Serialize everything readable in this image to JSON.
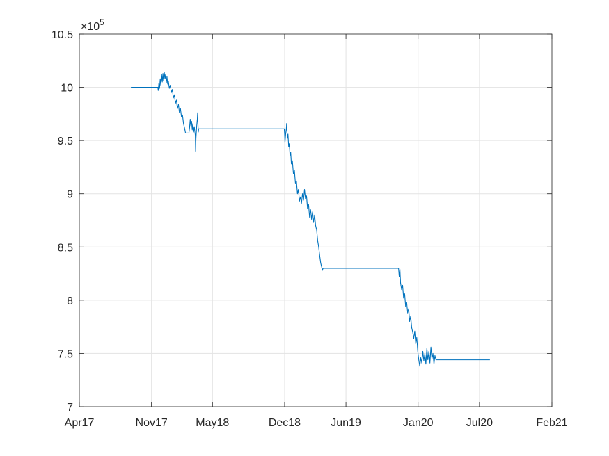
{
  "chart_data": {
    "type": "line",
    "title": "",
    "xlabel": "",
    "ylabel": "",
    "y_scale_exponent_label": "×10",
    "y_scale_exponent_power": "5",
    "x_axis": {
      "type": "date",
      "range": [
        "2017-04-01",
        "2021-02-01"
      ],
      "ticks": [
        {
          "date": "2017-04-01",
          "label": "Apr17"
        },
        {
          "date": "2017-11-01",
          "label": "Nov17"
        },
        {
          "date": "2018-05-01",
          "label": "May18"
        },
        {
          "date": "2018-12-01",
          "label": "Dec18"
        },
        {
          "date": "2019-06-01",
          "label": "Jun19"
        },
        {
          "date": "2020-01-01",
          "label": "Jan20"
        },
        {
          "date": "2020-07-01",
          "label": "Jul20"
        },
        {
          "date": "2021-02-01",
          "label": "Feb21"
        }
      ]
    },
    "y_axis": {
      "range": [
        7,
        10.5
      ],
      "ticks": [
        {
          "value": 7,
          "label": "7"
        },
        {
          "value": 7.5,
          "label": "7.5"
        },
        {
          "value": 8,
          "label": "8"
        },
        {
          "value": 8.5,
          "label": "8.5"
        },
        {
          "value": 9,
          "label": "9"
        },
        {
          "value": 9.5,
          "label": "9.5"
        },
        {
          "value": 10,
          "label": "10"
        },
        {
          "value": 10.5,
          "label": "10.5"
        }
      ]
    },
    "grid": true,
    "legend": "none",
    "series": [
      {
        "color": "#0072bd",
        "points": [
          [
            "2017-09-01",
            10.0
          ],
          [
            "2017-11-20",
            10.0
          ],
          [
            "2017-11-21",
            9.97
          ],
          [
            "2017-11-23",
            10.04
          ],
          [
            "2017-11-25",
            9.99
          ],
          [
            "2017-11-27",
            10.08
          ],
          [
            "2017-11-29",
            10.02
          ],
          [
            "2017-12-01",
            10.12
          ],
          [
            "2017-12-03",
            10.05
          ],
          [
            "2017-12-05",
            10.13
          ],
          [
            "2017-12-07",
            10.06
          ],
          [
            "2017-12-09",
            10.14
          ],
          [
            "2017-12-11",
            10.08
          ],
          [
            "2017-12-13",
            10.12
          ],
          [
            "2017-12-15",
            10.04
          ],
          [
            "2017-12-17",
            10.1
          ],
          [
            "2017-12-19",
            10.03
          ],
          [
            "2017-12-21",
            10.06
          ],
          [
            "2017-12-24",
            9.99
          ],
          [
            "2017-12-27",
            10.02
          ],
          [
            "2017-12-30",
            9.95
          ],
          [
            "2018-01-02",
            9.98
          ],
          [
            "2018-01-05",
            9.9
          ],
          [
            "2018-01-08",
            9.93
          ],
          [
            "2018-01-11",
            9.85
          ],
          [
            "2018-01-14",
            9.88
          ],
          [
            "2018-01-17",
            9.8
          ],
          [
            "2018-01-20",
            9.84
          ],
          [
            "2018-01-23",
            9.76
          ],
          [
            "2018-01-26",
            9.8
          ],
          [
            "2018-01-29",
            9.72
          ],
          [
            "2018-02-01",
            9.74
          ],
          [
            "2018-02-04",
            9.66
          ],
          [
            "2018-02-07",
            9.62
          ],
          [
            "2018-02-10",
            9.57
          ],
          [
            "2018-02-20",
            9.57
          ],
          [
            "2018-02-22",
            9.62
          ],
          [
            "2018-02-24",
            9.7
          ],
          [
            "2018-02-26",
            9.64
          ],
          [
            "2018-02-28",
            9.68
          ],
          [
            "2018-03-02",
            9.6
          ],
          [
            "2018-03-04",
            9.66
          ],
          [
            "2018-03-06",
            9.58
          ],
          [
            "2018-03-08",
            9.63
          ],
          [
            "2018-03-11",
            9.55
          ],
          [
            "2018-03-12",
            9.4
          ],
          [
            "2018-03-13",
            9.52
          ],
          [
            "2018-03-15",
            9.63
          ],
          [
            "2018-03-17",
            9.7
          ],
          [
            "2018-03-18",
            9.76
          ],
          [
            "2018-03-19",
            9.65
          ],
          [
            "2018-03-20",
            9.58
          ],
          [
            "2018-03-21",
            9.61
          ],
          [
            "2018-11-30",
            9.61
          ],
          [
            "2018-12-01",
            9.56
          ],
          [
            "2018-12-02",
            9.48
          ],
          [
            "2018-12-04",
            9.56
          ],
          [
            "2018-12-06",
            9.61
          ],
          [
            "2018-12-07",
            9.66
          ],
          [
            "2018-12-09",
            9.52
          ],
          [
            "2018-12-11",
            9.56
          ],
          [
            "2018-12-13",
            9.44
          ],
          [
            "2018-12-15",
            9.47
          ],
          [
            "2018-12-17",
            9.36
          ],
          [
            "2018-12-19",
            9.39
          ],
          [
            "2018-12-21",
            9.28
          ],
          [
            "2018-12-24",
            9.31
          ],
          [
            "2018-12-27",
            9.19
          ],
          [
            "2018-12-30",
            9.22
          ],
          [
            "2019-01-02",
            9.1
          ],
          [
            "2019-01-05",
            9.12
          ],
          [
            "2019-01-08",
            9.0
          ],
          [
            "2019-01-11",
            9.04
          ],
          [
            "2019-01-14",
            8.93
          ],
          [
            "2019-01-17",
            8.97
          ],
          [
            "2019-01-20",
            8.91
          ],
          [
            "2019-01-23",
            9.0
          ],
          [
            "2019-01-26",
            8.94
          ],
          [
            "2019-01-29",
            9.04
          ],
          [
            "2019-02-01",
            8.95
          ],
          [
            "2019-02-04",
            8.98
          ],
          [
            "2019-02-07",
            8.86
          ],
          [
            "2019-02-10",
            8.9
          ],
          [
            "2019-02-13",
            8.78
          ],
          [
            "2019-02-16",
            8.85
          ],
          [
            "2019-02-19",
            8.76
          ],
          [
            "2019-02-22",
            8.83
          ],
          [
            "2019-02-25",
            8.73
          ],
          [
            "2019-02-28",
            8.8
          ],
          [
            "2019-03-03",
            8.7
          ],
          [
            "2019-03-06",
            8.66
          ],
          [
            "2019-03-09",
            8.56
          ],
          [
            "2019-03-12",
            8.5
          ],
          [
            "2019-03-15",
            8.42
          ],
          [
            "2019-03-18",
            8.35
          ],
          [
            "2019-03-21",
            8.31
          ],
          [
            "2019-03-23",
            8.28
          ],
          [
            "2019-03-25",
            8.3
          ],
          [
            "2019-11-04",
            8.3
          ],
          [
            "2019-11-06",
            8.22
          ],
          [
            "2019-11-08",
            8.29
          ],
          [
            "2019-11-10",
            8.16
          ],
          [
            "2019-11-13",
            8.1
          ],
          [
            "2019-11-16",
            8.14
          ],
          [
            "2019-11-19",
            8.02
          ],
          [
            "2019-11-22",
            8.06
          ],
          [
            "2019-11-25",
            7.94
          ],
          [
            "2019-11-28",
            7.98
          ],
          [
            "2019-12-01",
            7.88
          ],
          [
            "2019-12-04",
            7.92
          ],
          [
            "2019-12-07",
            7.8
          ],
          [
            "2019-12-10",
            7.85
          ],
          [
            "2019-12-13",
            7.74
          ],
          [
            "2019-12-16",
            7.7
          ],
          [
            "2019-12-19",
            7.64
          ],
          [
            "2019-12-22",
            7.71
          ],
          [
            "2019-12-25",
            7.59
          ],
          [
            "2019-12-28",
            7.65
          ],
          [
            "2019-12-31",
            7.52
          ],
          [
            "2020-01-03",
            7.44
          ],
          [
            "2020-01-06",
            7.38
          ],
          [
            "2020-01-09",
            7.46
          ],
          [
            "2020-01-12",
            7.41
          ],
          [
            "2020-01-15",
            7.52
          ],
          [
            "2020-01-18",
            7.43
          ],
          [
            "2020-01-21",
            7.5
          ],
          [
            "2020-01-24",
            7.4
          ],
          [
            "2020-01-27",
            7.55
          ],
          [
            "2020-01-30",
            7.44
          ],
          [
            "2020-02-02",
            7.52
          ],
          [
            "2020-02-05",
            7.41
          ],
          [
            "2020-02-08",
            7.56
          ],
          [
            "2020-02-11",
            7.45
          ],
          [
            "2020-02-14",
            7.5
          ],
          [
            "2020-02-17",
            7.4
          ],
          [
            "2020-02-20",
            7.48
          ],
          [
            "2020-02-23",
            7.44
          ],
          [
            "2020-02-26",
            7.44
          ],
          [
            "2020-08-01",
            7.44
          ]
        ]
      }
    ]
  }
}
